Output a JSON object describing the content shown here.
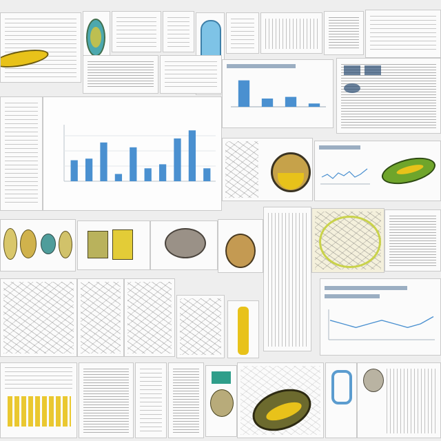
{
  "canvas": {
    "background": "#eeeeee",
    "accent_colors": {
      "chart_blue": "#4a90d0",
      "leaf_yellow": "#e8c21a",
      "leaf_green": "#6fa52b",
      "teal": "#3aa0a6"
    }
  },
  "main_chart": {
    "title_text": "",
    "bar_color": "#4a90d0"
  },
  "chart_data": [
    {
      "type": "bar",
      "title": "",
      "categories": [
        "",
        "",
        "",
        "",
        "",
        "",
        "",
        "",
        "",
        ""
      ],
      "values": [
        26,
        28,
        48,
        9,
        42,
        16,
        21,
        53,
        63,
        16
      ],
      "ylim": [
        0,
        70
      ]
    },
    {
      "type": "bar",
      "title": "",
      "categories": [
        "",
        "",
        "",
        ""
      ],
      "values": [
        32,
        10,
        12,
        4
      ],
      "ylim": [
        0,
        40
      ]
    },
    {
      "type": "line",
      "title": "",
      "x": [
        1,
        2,
        3,
        4,
        5,
        6,
        7,
        8,
        9
      ],
      "y": [
        5,
        4,
        3,
        4,
        5,
        4,
        3,
        4,
        6
      ]
    }
  ]
}
